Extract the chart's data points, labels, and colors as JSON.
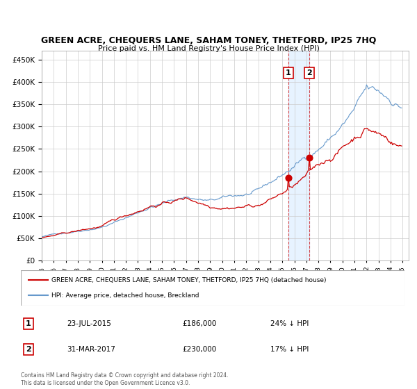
{
  "title": "GREEN ACRE, CHEQUERS LANE, SAHAM TONEY, THETFORD, IP25 7HQ",
  "subtitle": "Price paid vs. HM Land Registry's House Price Index (HPI)",
  "ylim": [
    0,
    470000
  ],
  "yticks": [
    0,
    50000,
    100000,
    150000,
    200000,
    250000,
    300000,
    350000,
    400000,
    450000
  ],
  "hpi_color": "#6699cc",
  "price_color": "#cc0000",
  "sale1_date_idx": 246,
  "sale1_price": 186000,
  "sale2_date_idx": 267,
  "sale2_price": 230000,
  "legend_label_red": "GREEN ACRE, CHEQUERS LANE, SAHAM TONEY, THETFORD, IP25 7HQ (detached house)",
  "legend_label_blue": "HPI: Average price, detached house, Breckland",
  "footnote": "Contains HM Land Registry data © Crown copyright and database right 2024.\nThis data is licensed under the Open Government Licence v3.0.",
  "table_rows": [
    {
      "num": "1",
      "date": "23-JUL-2015",
      "price": "£186,000",
      "vs_hpi": "24% ↓ HPI"
    },
    {
      "num": "2",
      "date": "31-MAR-2017",
      "price": "£230,000",
      "vs_hpi": "17% ↓ HPI"
    }
  ]
}
